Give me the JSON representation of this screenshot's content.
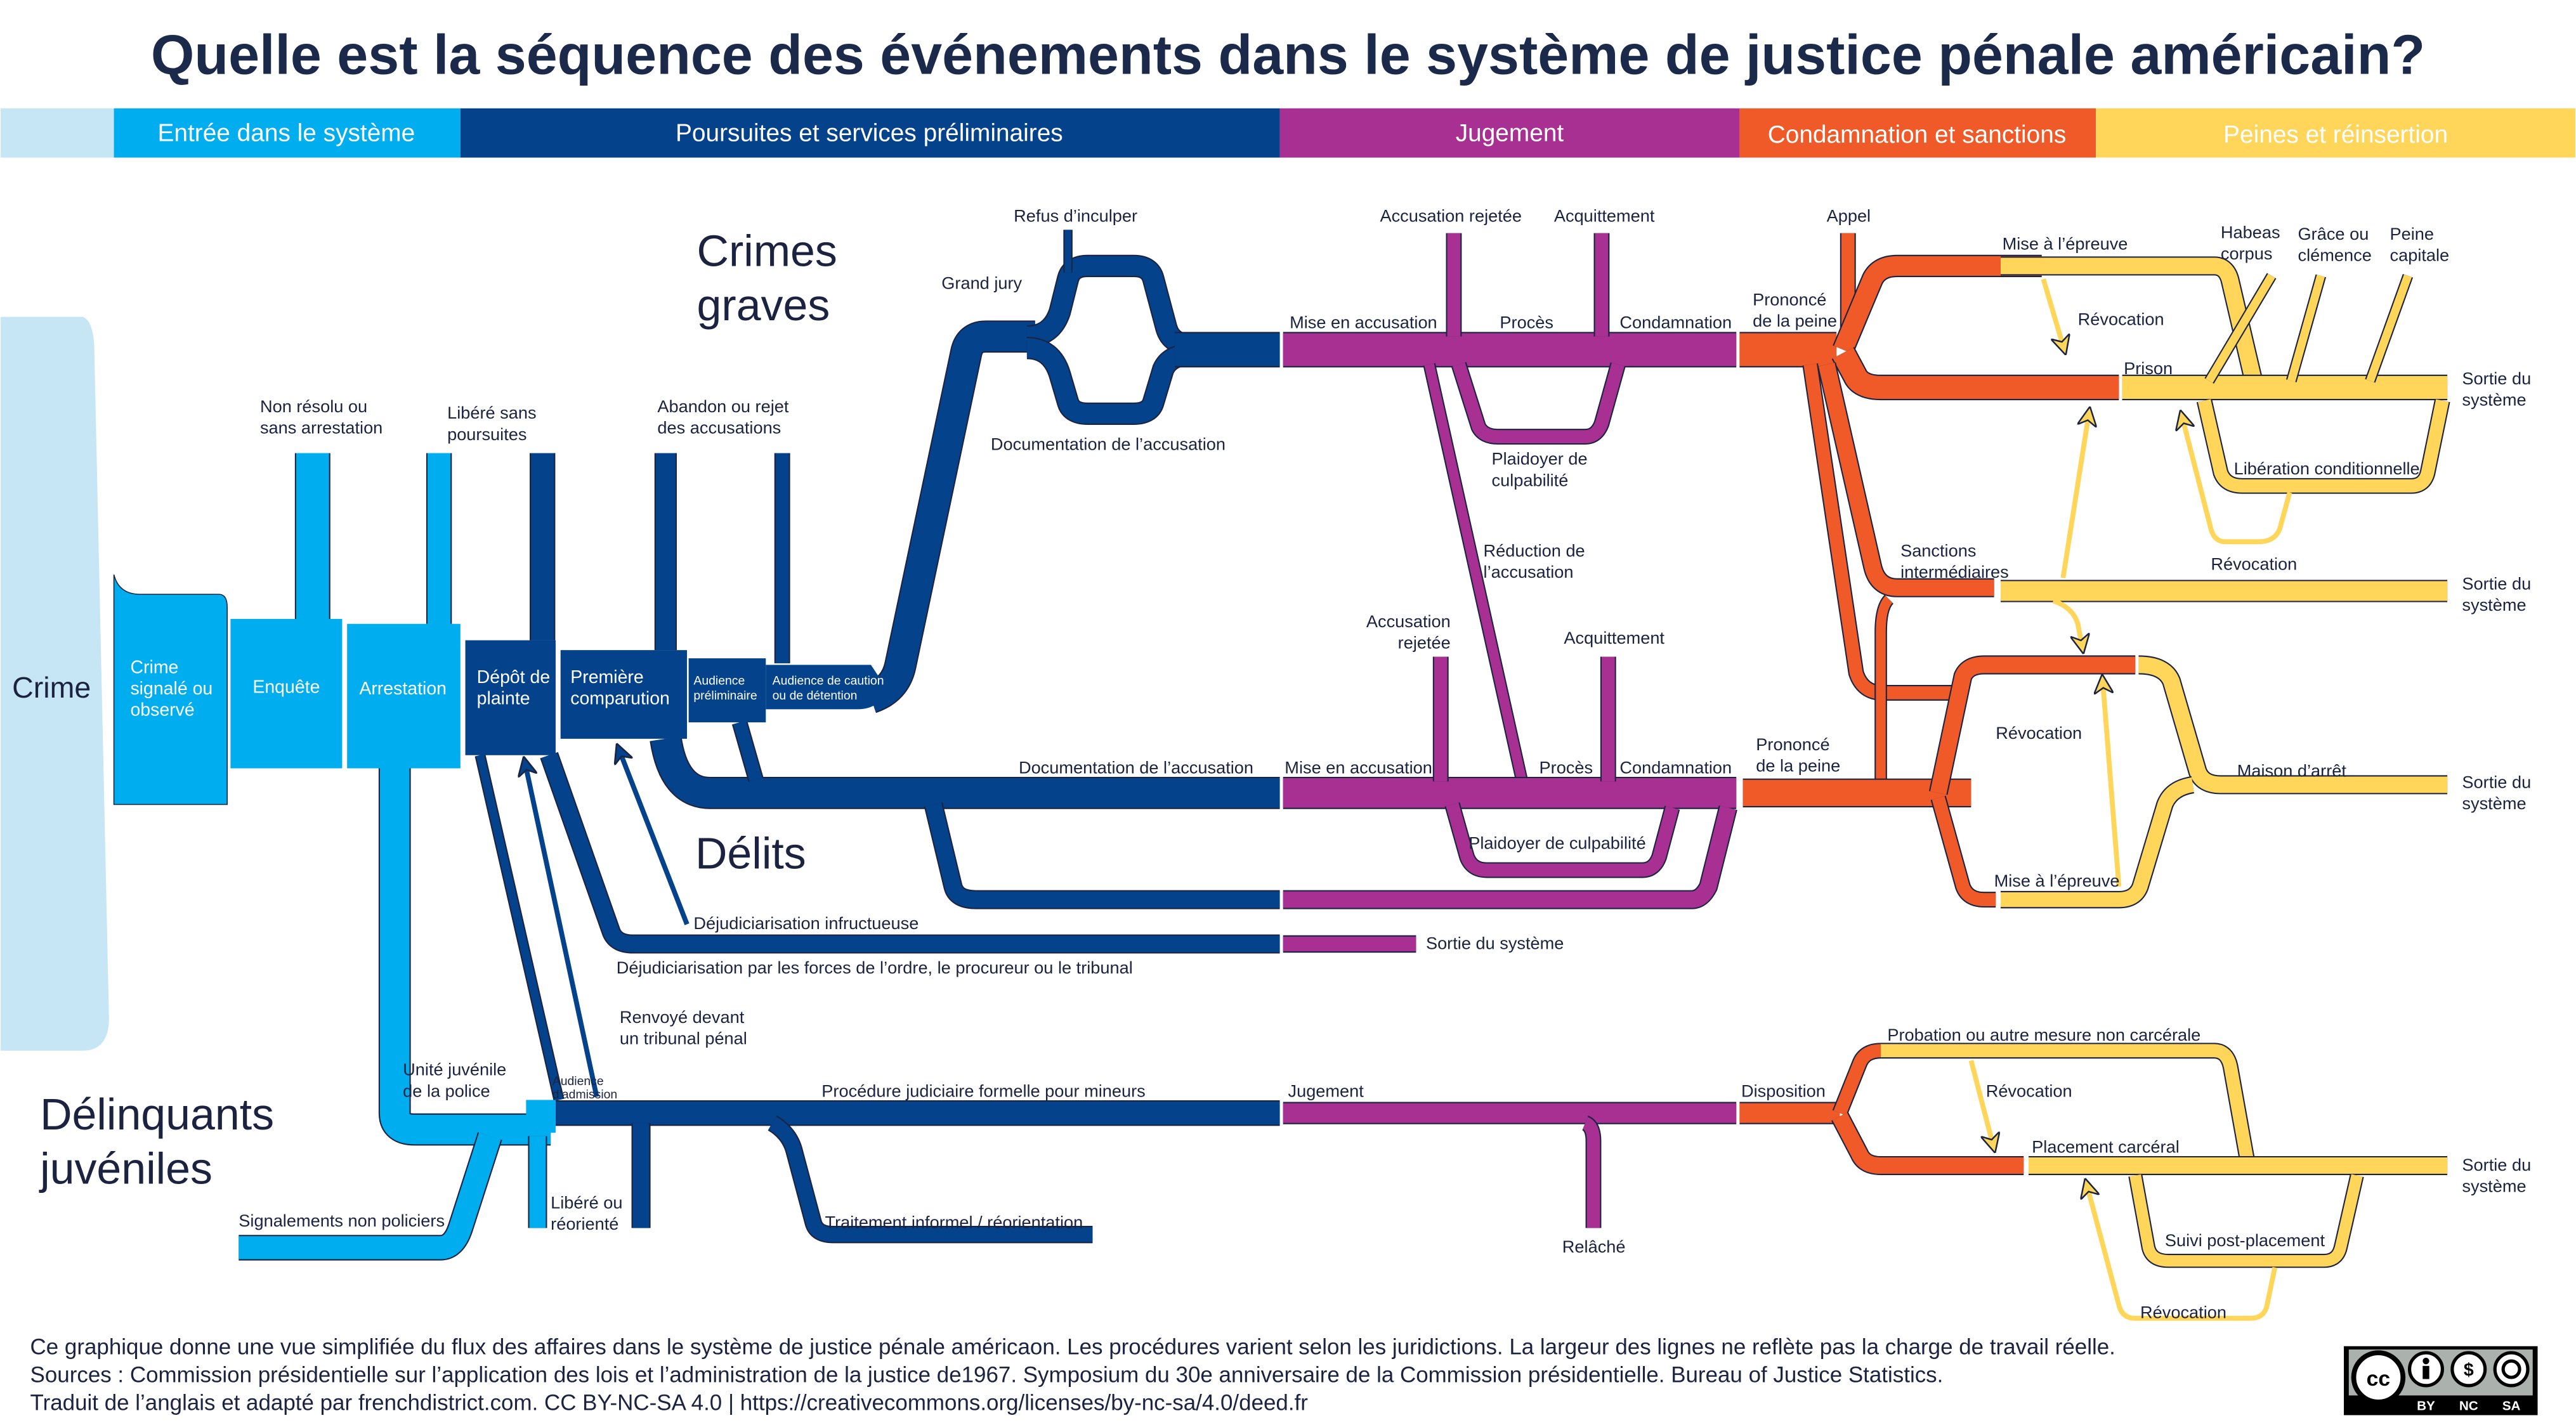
{
  "title": "Quelle est la séquence des événements dans le système de justice pénale américain?",
  "stages": [
    "Entrée dans le système",
    "Poursuites et services préliminaires",
    "Jugement",
    "Condamnation et sanctions",
    "Peines et réinsertion"
  ],
  "colors": {
    "entry": "#00aeef",
    "prosecution": "#04438b",
    "adjudication": "#a93093",
    "sentencing": "#f05a28",
    "corrections": "#ffd65a",
    "crime": "#c6e6f5",
    "title": "#1b2a4a"
  },
  "sections": {
    "crime": "Crime",
    "crimes_graves": [
      "Crimes",
      "graves"
    ],
    "delits": "Délits",
    "juveniles": [
      "Délinquants",
      "juvéniles"
    ]
  },
  "boxes": {
    "signale": [
      "Crime",
      "signalé ou",
      "observé"
    ],
    "enquete": "Enquête",
    "arrestation": "Arrestation",
    "depot": [
      "Dépôt de",
      "plainte"
    ],
    "premiere": [
      "Première",
      "comparution"
    ],
    "aud_prelim": [
      "Audience",
      "préliminaire"
    ],
    "aud_caution": [
      "Audience de caution",
      "ou de détention"
    ]
  },
  "labels": {
    "non_resolu": [
      "Non résolu ou",
      "sans arrestation"
    ],
    "libere": [
      "Libéré sans",
      "poursuites"
    ],
    "abandon": [
      "Abandon ou rejet",
      "des accusations"
    ],
    "refus": "Refus d’inculper",
    "grand_jury": "Grand jury",
    "doc_top": "Documentation de l’accusation",
    "mise_top": "Mise en accusation",
    "acc_rej_top": "Accusation rejetée",
    "acquit_top": "Acquittement",
    "proces_top": "Procès",
    "condamn_top": "Condamnation",
    "plaidoyer_top": [
      "Plaidoyer de",
      "culpabilité"
    ],
    "reduction": [
      "Réduction de",
      "l’accusation"
    ],
    "acc_rej_low": [
      "Accusation",
      "rejetée"
    ],
    "acquit_low": "Acquittement",
    "doc_low": "Documentation de l’accusation",
    "mise_low": "Mise en accusation",
    "proces_low": "Procès",
    "condamn_low": "Condamnation",
    "plaidoyer_low": "Plaidoyer de culpabilité",
    "dejud_inf": "Déjudiciarisation infructueuse",
    "dejud": "Déjudiciarisation par les forces de l’ordre, le procureur ou le tribunal",
    "sortie_purple": "Sortie du système",
    "renvoye": [
      "Renvoyé devant",
      "un tribunal pénal"
    ],
    "unite_juv": [
      "Unité juvénile",
      "de la police"
    ],
    "aud_admission": [
      "Audience",
      "d’admission"
    ],
    "procedure_juv": "Procédure judiciaire formelle pour mineurs",
    "jugement": "Jugement",
    "libere_juv": [
      "Libéré ou",
      "réorienté"
    ],
    "signalements": "Signalements non policiers",
    "traitement": "Traitement informel / réorientation",
    "relache": "Relâché",
    "appel": "Appel",
    "prononce_top": [
      "Prononcé",
      "de la peine"
    ],
    "prononce_low": [
      "Prononcé",
      "de la peine"
    ],
    "disposition": "Disposition",
    "mise_epreuve_top": "Mise à l’épreuve",
    "revocation1": "Révocation",
    "prison": "Prison",
    "habeas": [
      "Habeas",
      "corpus"
    ],
    "grace": [
      "Grâce ou",
      "clémence"
    ],
    "capitale": [
      "Peine",
      "capitale"
    ],
    "liberation": "Libération conditionnelle",
    "revocation2": "Révocation",
    "sanctions": [
      "Sanctions",
      "intermédiaires"
    ],
    "revocation3": "Révocation",
    "maison": "Maison d’arrêt",
    "mise_epreuve_low": "Mise à l’épreuve",
    "sortie": [
      "Sortie du",
      "système"
    ],
    "probation": "Probation ou autre mesure non carcérale",
    "revocation4": "Révocation",
    "placement": "Placement carcéral",
    "suivi": "Suivi post-placement",
    "revocation5": "Révocation"
  },
  "footer": [
    "Ce graphique donne une vue simplifiée du flux des affaires dans le système de justice pénale américaon. Les procédures varient selon les juridictions. La largeur des lignes ne reflète pas la charge de travail réelle.",
    "Sources : Commission présidentielle sur l’application des lois et l’administration de la justice de1967. Symposium du 30e anniversaire de la Commission présidentielle. Bureau of Justice Statistics.",
    "Traduit de l’anglais et adapté par frenchdistrict.com. CC BY-NC-SA 4.0 | https://creativecommons.org/licenses/by-nc-sa/4.0/deed.fr"
  ],
  "license": {
    "badge": "cc",
    "terms": [
      "BY",
      "NC",
      "SA"
    ]
  }
}
